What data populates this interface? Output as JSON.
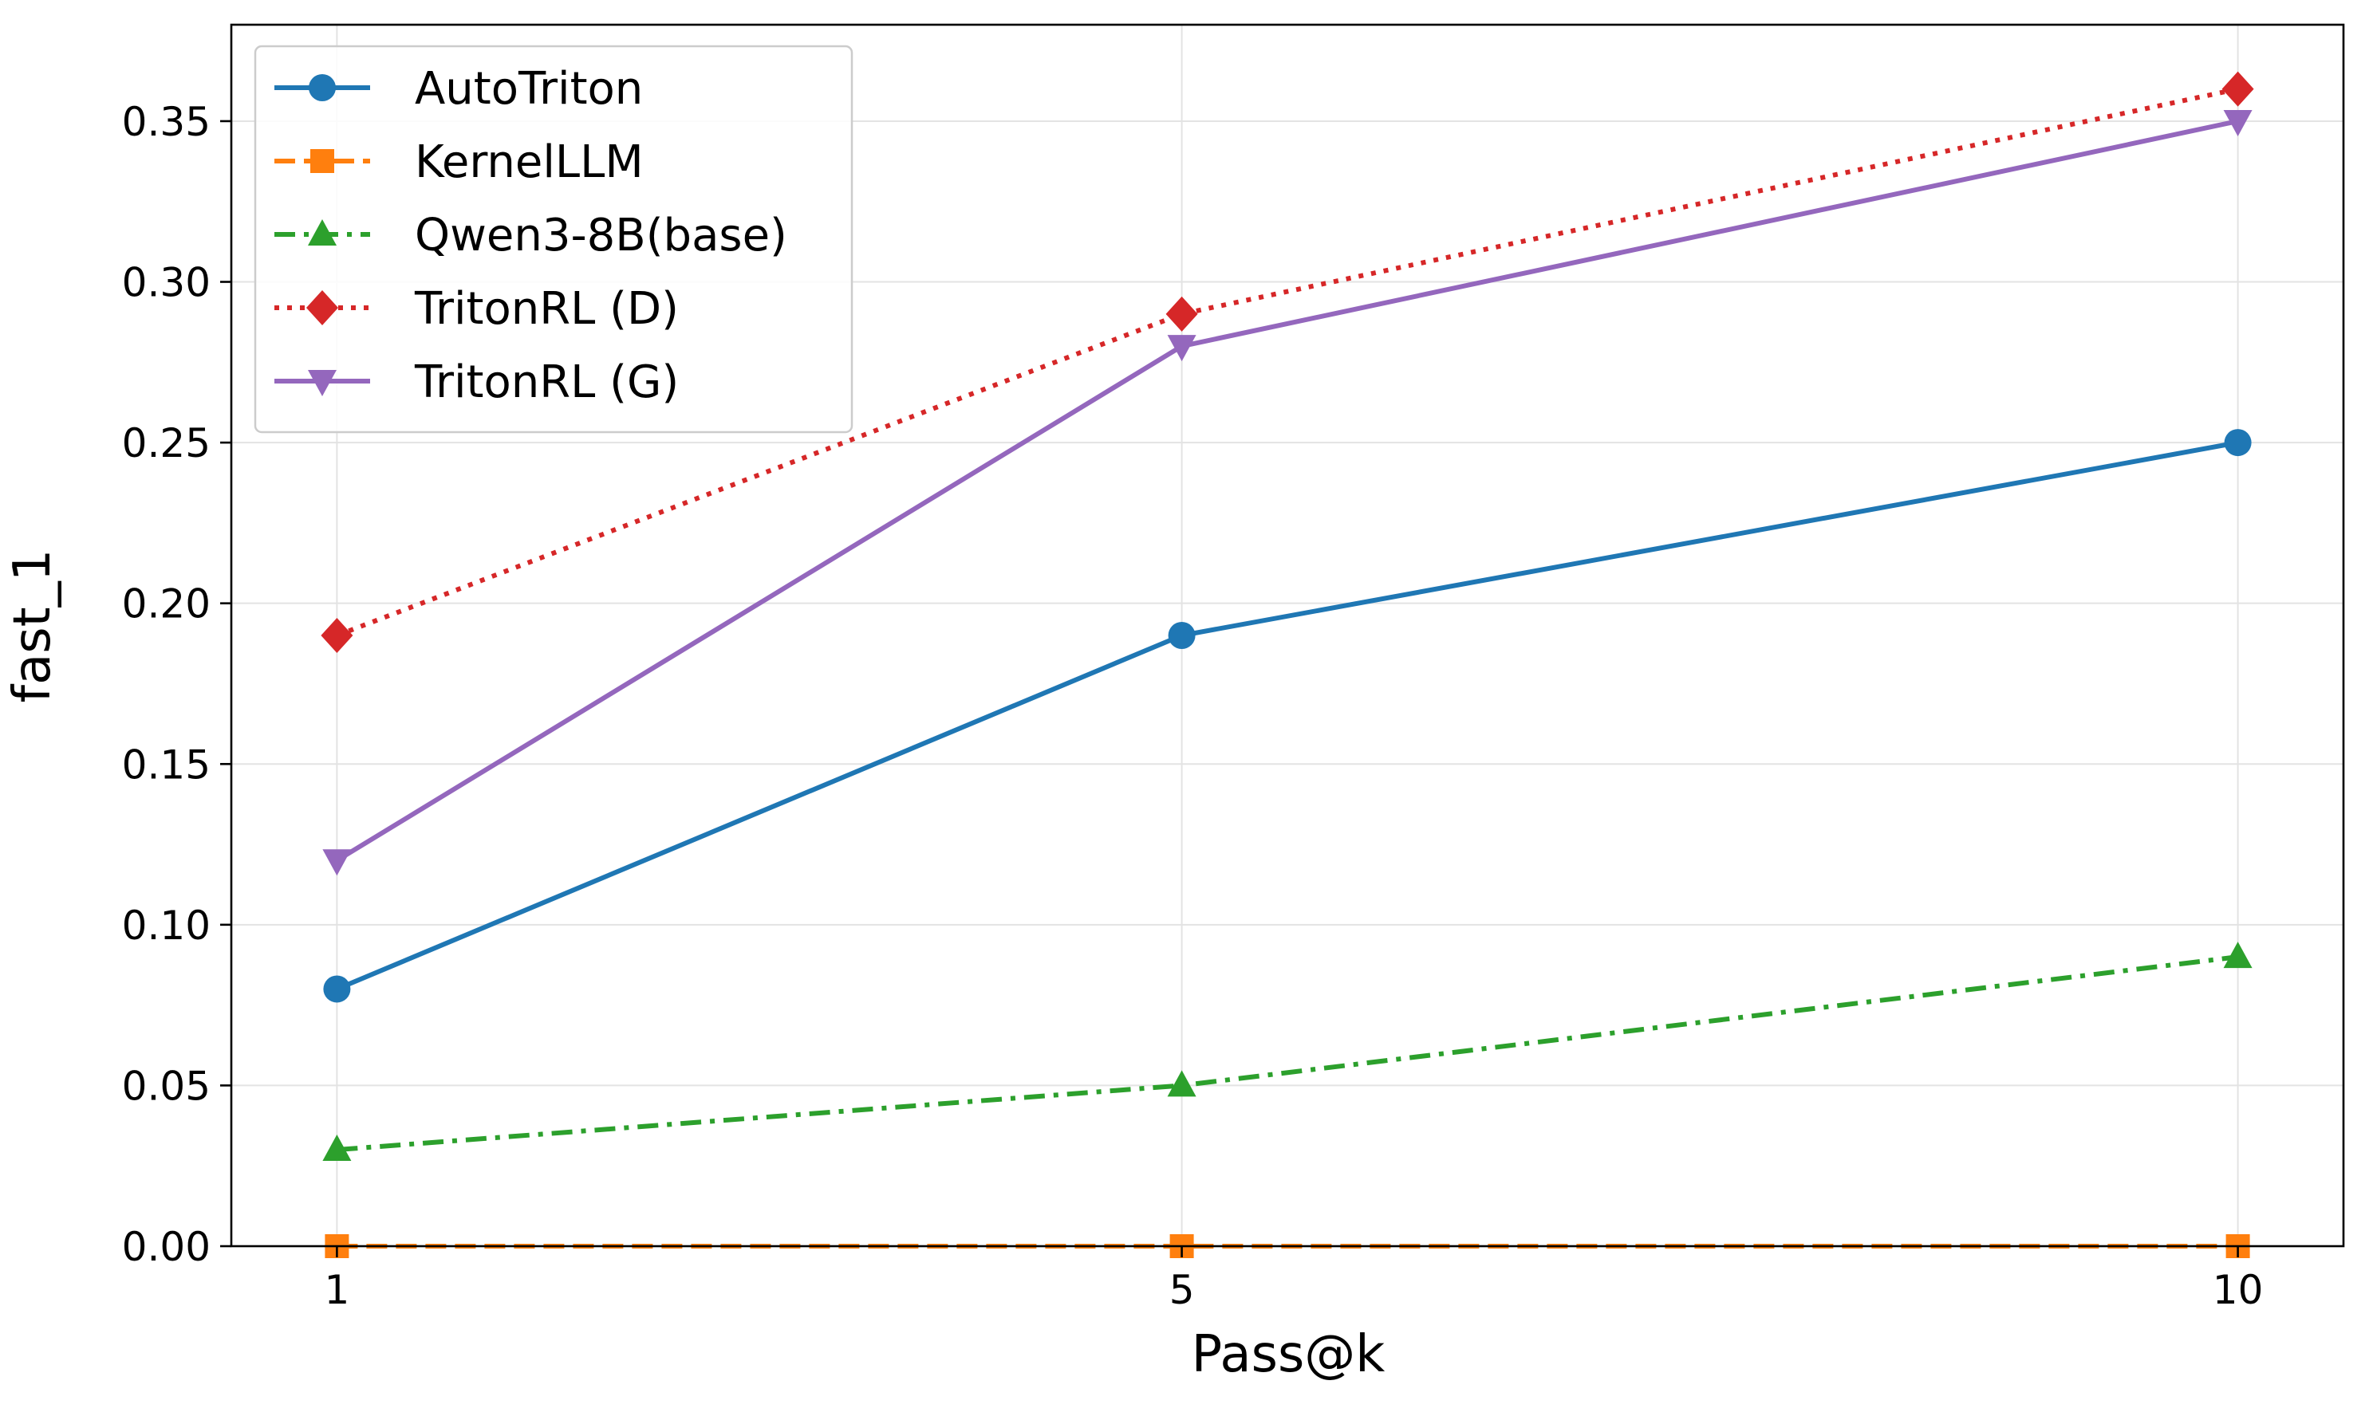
{
  "chart_data": {
    "type": "line",
    "title": "",
    "xlabel": "Pass@k",
    "ylabel": "fast_1",
    "x": [
      1,
      5,
      10
    ],
    "x_tick_labels": [
      "1",
      "5",
      "10"
    ],
    "ylim": [
      0,
      0.38
    ],
    "y_ticks": [
      0.0,
      0.05,
      0.1,
      0.15,
      0.2,
      0.25,
      0.3,
      0.35
    ],
    "y_tick_labels": [
      "0.00",
      "0.05",
      "0.10",
      "0.15",
      "0.20",
      "0.25",
      "0.30",
      "0.35"
    ],
    "grid": true,
    "legend_position": "top-left",
    "series": [
      {
        "name": "AutoTriton",
        "values": [
          0.08,
          0.19,
          0.25
        ],
        "color": "#1f77b4",
        "marker": "circle",
        "line_style": "solid"
      },
      {
        "name": "KernelLLM",
        "values": [
          0.0,
          0.0,
          0.0
        ],
        "color": "#ff7f0e",
        "marker": "square",
        "line_style": "dashed"
      },
      {
        "name": "Qwen3-8B(base)",
        "values": [
          0.03,
          0.05,
          0.09
        ],
        "color": "#2ca02c",
        "marker": "triangle-up",
        "line_style": "dashdot"
      },
      {
        "name": "TritonRL (D)",
        "values": [
          0.19,
          0.29,
          0.36
        ],
        "color": "#d62728",
        "marker": "diamond",
        "line_style": "dotted"
      },
      {
        "name": "TritonRL (G)",
        "values": [
          0.12,
          0.28,
          0.35
        ],
        "color": "#9467bd",
        "marker": "triangle-down",
        "line_style": "solid"
      }
    ]
  }
}
